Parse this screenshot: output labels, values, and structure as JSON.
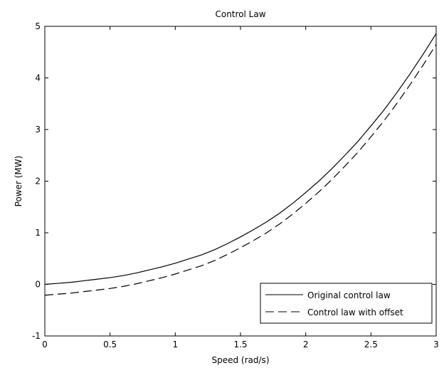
{
  "chart_data": {
    "type": "line",
    "title": "Control Law",
    "xlabel": "Speed (rad/s)",
    "ylabel": "Power (MW)",
    "xlim": [
      0,
      3
    ],
    "ylim": [
      -1,
      5
    ],
    "xticks": [
      0,
      0.5,
      1,
      1.5,
      2,
      2.5,
      3
    ],
    "xtick_labels": [
      "0",
      "0.5",
      "1",
      "1.5",
      "2",
      "2.5",
      "3"
    ],
    "yticks": [
      -1,
      0,
      1,
      2,
      3,
      4,
      5
    ],
    "ytick_labels": [
      "-1",
      "0",
      "1",
      "2",
      "3",
      "4",
      "5"
    ],
    "grid": false,
    "legend_position": "bottom-right",
    "x": [
      0,
      0.1,
      0.2,
      0.3,
      0.4,
      0.5,
      0.6,
      0.7,
      0.8,
      0.9,
      1.0,
      1.1,
      1.2,
      1.3,
      1.4,
      1.5,
      1.6,
      1.7,
      1.8,
      1.9,
      2.0,
      2.1,
      2.2,
      2.3,
      2.4,
      2.5,
      2.6,
      2.7,
      2.8,
      2.9,
      3.0
    ],
    "series": [
      {
        "name": "Original control law",
        "style": "solid",
        "color": "#000000",
        "values": [
          0.0,
          0.02,
          0.04,
          0.07,
          0.1,
          0.13,
          0.17,
          0.22,
          0.28,
          0.34,
          0.41,
          0.49,
          0.57,
          0.67,
          0.79,
          0.92,
          1.06,
          1.21,
          1.38,
          1.57,
          1.78,
          2.0,
          2.24,
          2.5,
          2.77,
          3.07,
          3.38,
          3.72,
          4.08,
          4.46,
          4.86
        ]
      },
      {
        "name": "Control law with offset",
        "style": "dashed",
        "color": "#000000",
        "values": [
          -0.21,
          -0.19,
          -0.17,
          -0.14,
          -0.11,
          -0.08,
          -0.04,
          0.01,
          0.07,
          0.13,
          0.2,
          0.28,
          0.36,
          0.46,
          0.58,
          0.71,
          0.85,
          1.0,
          1.17,
          1.36,
          1.57,
          1.79,
          2.03,
          2.29,
          2.56,
          2.86,
          3.17,
          3.51,
          3.87,
          4.25,
          4.65
        ]
      }
    ]
  }
}
